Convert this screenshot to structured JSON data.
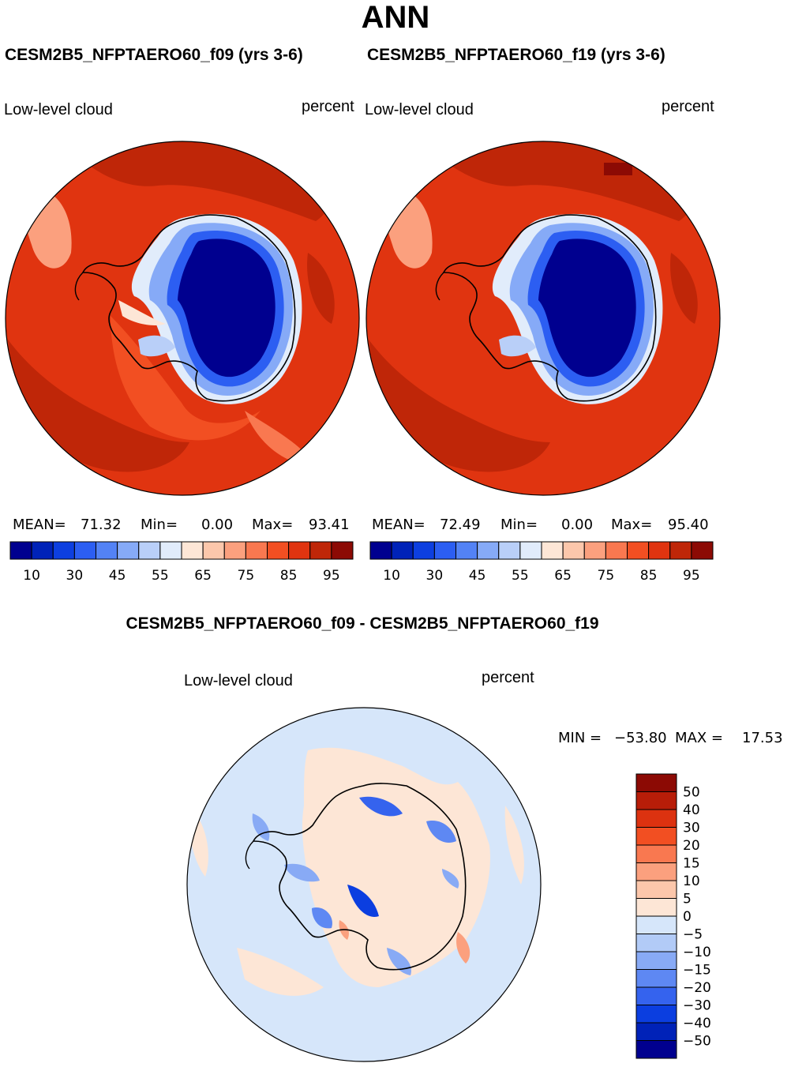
{
  "title": "ANN",
  "panels": [
    {
      "case_title": "CESM2B5_NFPTAERO60_f09 (yrs 3-6)",
      "left_label": "Low-level cloud",
      "right_label": "percent",
      "stats": {
        "mean_label": "MEAN=",
        "mean": "71.32",
        "min_label": "Min=",
        "min": "0.00",
        "max_label": "Max=",
        "max": "93.41"
      }
    },
    {
      "case_title": "CESM2B5_NFPTAERO60_f19 (yrs 3-6)",
      "left_label": "Low-level cloud",
      "right_label": "percent",
      "stats": {
        "mean_label": "MEAN=",
        "mean": "72.49",
        "min_label": "Min=",
        "min": "0.00",
        "max_label": "Max=",
        "max": "95.40"
      }
    }
  ],
  "diff_panel": {
    "title": "CESM2B5_NFPTAERO60_f09 - CESM2B5_NFPTAERO60_f19",
    "left_label": "Low-level cloud",
    "right_label": "percent",
    "stats": {
      "min_label": "MIN =",
      "min": "−53.80",
      "max_label": "MAX =",
      "max": "17.53"
    }
  },
  "chart_data": [
    {
      "type": "heatmap",
      "projection": "south-polar-stereographic",
      "title": "CESM2B5_NFPTAERO60_f09 (yrs 3-6)",
      "variable": "Low-level cloud",
      "units": "percent",
      "mean": 71.32,
      "min": 0.0,
      "max": 93.41,
      "colorbar": {
        "levels": [
          10,
          20,
          30,
          40,
          45,
          50,
          55,
          60,
          65,
          70,
          75,
          80,
          85,
          90,
          95
        ],
        "tick_labels": [
          "10",
          "30",
          "45",
          "55",
          "65",
          "75",
          "85",
          "95"
        ],
        "colors": [
          "#00008f",
          "#0022b8",
          "#0d3fe0",
          "#2c5ef2",
          "#5382f5",
          "#86aaf7",
          "#b9cff8",
          "#e1ecfb",
          "#fde6d6",
          "#fcc7ab",
          "#fba07e",
          "#f97850",
          "#f24f22",
          "#e03410",
          "#bf2608",
          "#8c0a04"
        ]
      }
    },
    {
      "type": "heatmap",
      "projection": "south-polar-stereographic",
      "title": "CESM2B5_NFPTAERO60_f19 (yrs 3-6)",
      "variable": "Low-level cloud",
      "units": "percent",
      "mean": 72.49,
      "min": 0.0,
      "max": 95.4,
      "colorbar": {
        "levels": [
          10,
          20,
          30,
          40,
          45,
          50,
          55,
          60,
          65,
          70,
          75,
          80,
          85,
          90,
          95
        ],
        "tick_labels": [
          "10",
          "30",
          "45",
          "55",
          "65",
          "75",
          "85",
          "95"
        ],
        "colors": [
          "#00008f",
          "#0022b8",
          "#0d3fe0",
          "#2c5ef2",
          "#5382f5",
          "#86aaf7",
          "#b9cff8",
          "#e1ecfb",
          "#fde6d6",
          "#fcc7ab",
          "#fba07e",
          "#f97850",
          "#f24f22",
          "#e03410",
          "#bf2608",
          "#8c0a04"
        ]
      }
    },
    {
      "type": "heatmap",
      "projection": "south-polar-stereographic",
      "title": "CESM2B5_NFPTAERO60_f09 - CESM2B5_NFPTAERO60_f19",
      "variable": "Low-level cloud",
      "units": "percent",
      "min": -53.8,
      "max": 17.53,
      "colorbar": {
        "levels": [
          50,
          40,
          30,
          20,
          15,
          10,
          5,
          0,
          -5,
          -10,
          -15,
          -20,
          -30,
          -40,
          -50
        ],
        "tick_labels": [
          "50",
          "40",
          "30",
          "20",
          "15",
          "10",
          "5",
          "0",
          "−5",
          "−10",
          "−15",
          "−20",
          "−30",
          "−40",
          "−50"
        ],
        "colors": [
          "#8c0a04",
          "#b81d08",
          "#dc3210",
          "#f24f22",
          "#f97850",
          "#fba07e",
          "#fcc7ab",
          "#fde6d6",
          "#d6e6fa",
          "#b2cbf7",
          "#88aaf5",
          "#5e88f3",
          "#3563ee",
          "#0b3ee0",
          "#0022b8",
          "#00008f"
        ]
      }
    }
  ]
}
